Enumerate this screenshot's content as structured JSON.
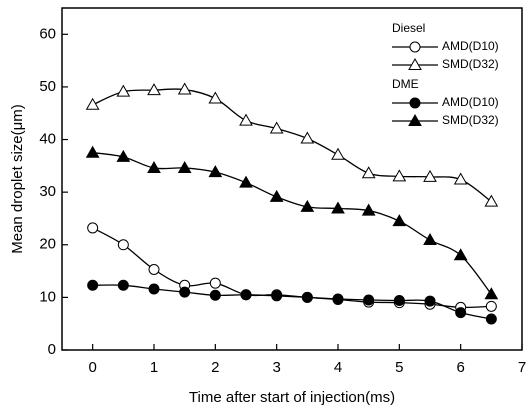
{
  "chart_data": {
    "type": "line",
    "x_label": "Time after start of injection(ms)",
    "y_label": "Mean droplet size(μm)",
    "x": [
      0,
      0.5,
      1,
      1.5,
      2,
      2.5,
      3,
      3.5,
      4,
      4.5,
      5,
      5.5,
      6,
      6.5
    ],
    "legend_groups": [
      "Diesel",
      "DME"
    ],
    "series": [
      {
        "name": "AMD(D10)",
        "group": 0,
        "marker": "circle",
        "filled": false,
        "color": "#000000",
        "values": [
          23.2,
          20,
          15.3,
          12.3,
          12.7,
          10.5,
          10.5,
          10,
          9.6,
          9.1,
          9,
          8.7,
          8.1,
          8.3
        ]
      },
      {
        "name": "SMD(D32)",
        "group": 0,
        "marker": "triangle",
        "filled": false,
        "color": "#000000",
        "values": [
          46.6,
          49.1,
          49.4,
          49.5,
          47.8,
          43.6,
          42.1,
          40.2,
          37.1,
          33.6,
          33,
          32.9,
          32.4,
          28.2
        ]
      },
      {
        "name": "AMD(D10)",
        "group": 1,
        "marker": "circle",
        "filled": true,
        "color": "#000000",
        "values": [
          12.3,
          12.3,
          11.6,
          11,
          10.4,
          10.5,
          10.3,
          10,
          9.7,
          9.5,
          9.4,
          9.3,
          7.1,
          5.9
        ]
      },
      {
        "name": "SMD(D32)",
        "group": 1,
        "marker": "triangle",
        "filled": true,
        "color": "#000000",
        "values": [
          37.5,
          36.7,
          34.6,
          34.6,
          33.8,
          31.8,
          29.1,
          27.2,
          26.9,
          26.5,
          24.5,
          20.9,
          18,
          10.6
        ]
      }
    ],
    "xlim": [
      -0.5,
      7
    ],
    "xticks": [
      0,
      1,
      2,
      3,
      4,
      5,
      6,
      7
    ],
    "ylim": [
      0,
      65
    ],
    "yticks": [
      0,
      10,
      20,
      30,
      40,
      50,
      60
    ],
    "grid": false
  }
}
